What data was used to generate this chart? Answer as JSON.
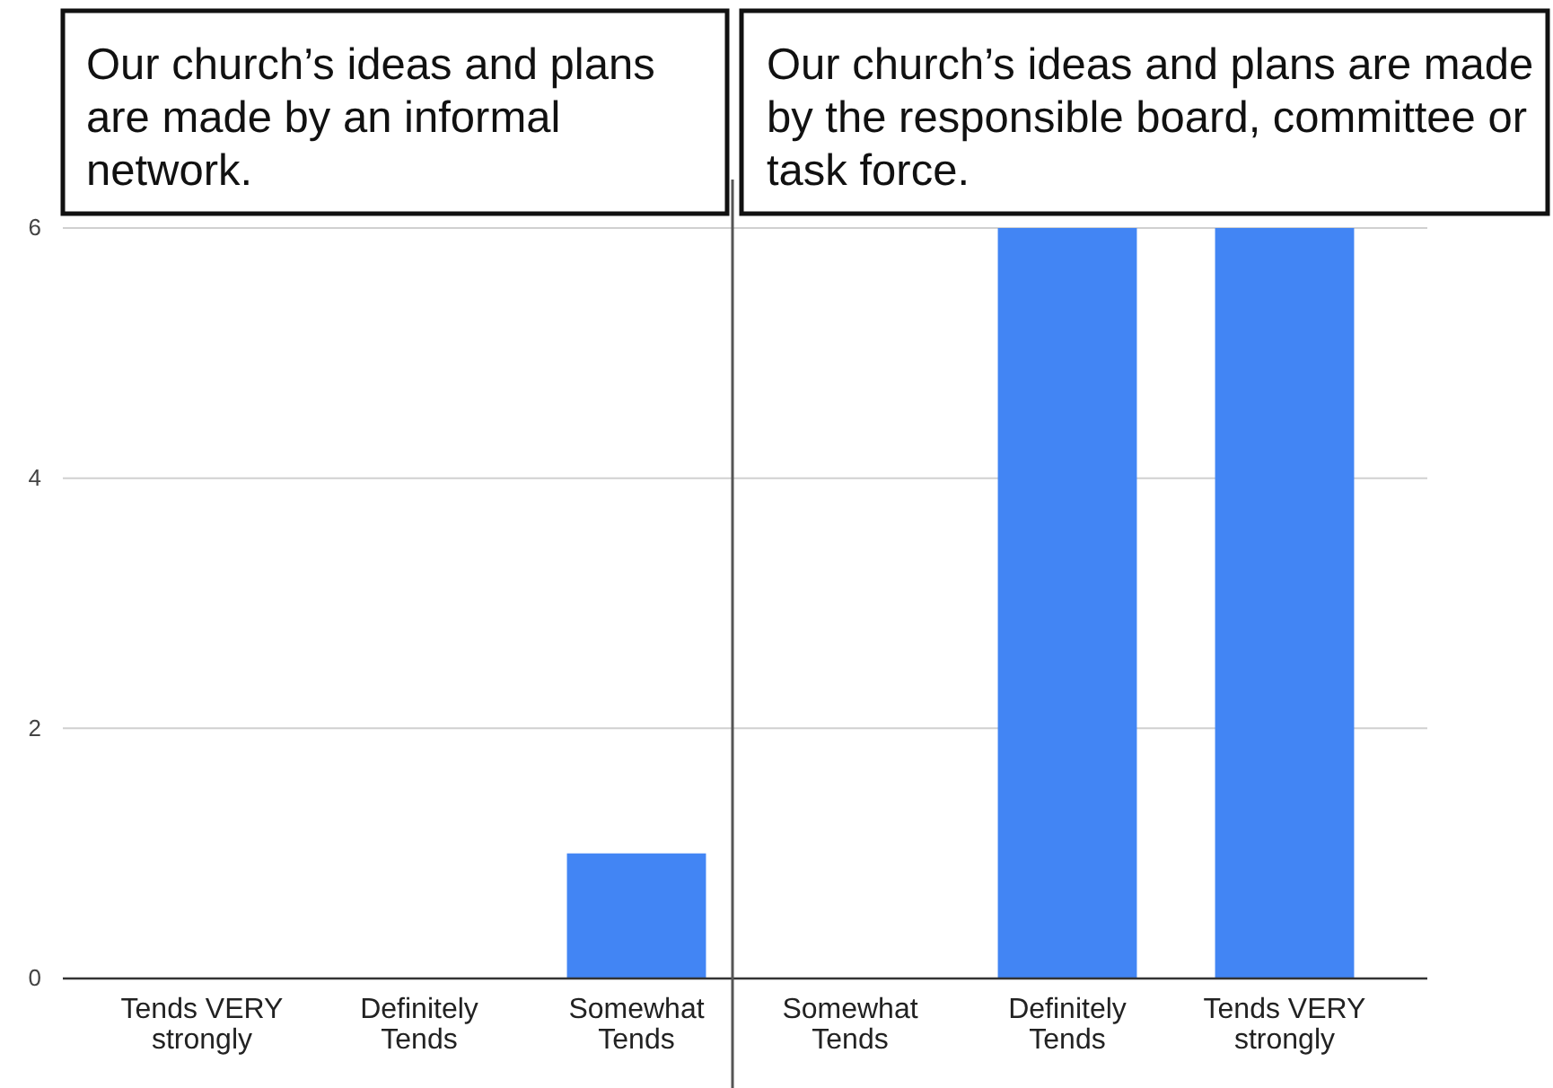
{
  "chart_data": [
    {
      "type": "bar",
      "title": "Our church’s ideas and plans are made by an informal network.",
      "categories": [
        "Tends VERY strongly",
        "Definitely Tends",
        "Somewhat Tends"
      ],
      "values": [
        0,
        0,
        1
      ],
      "color": "#4285f4",
      "ylim": [
        0,
        6
      ],
      "yticks": [
        0,
        2,
        4,
        6
      ],
      "grid": "y"
    },
    {
      "type": "bar",
      "title": "Our church’s ideas and plans are made by the responsible board, committee or task force.",
      "categories": [
        "Somewhat Tends",
        "Definitely Tends",
        "Tends VERY strongly"
      ],
      "values": [
        0,
        6,
        6
      ],
      "color": "#4285f4",
      "ylim": [
        0,
        6
      ],
      "yticks": [
        0,
        2,
        4,
        6
      ],
      "grid": "y",
      "tick_labels": "x"
    }
  ]
}
